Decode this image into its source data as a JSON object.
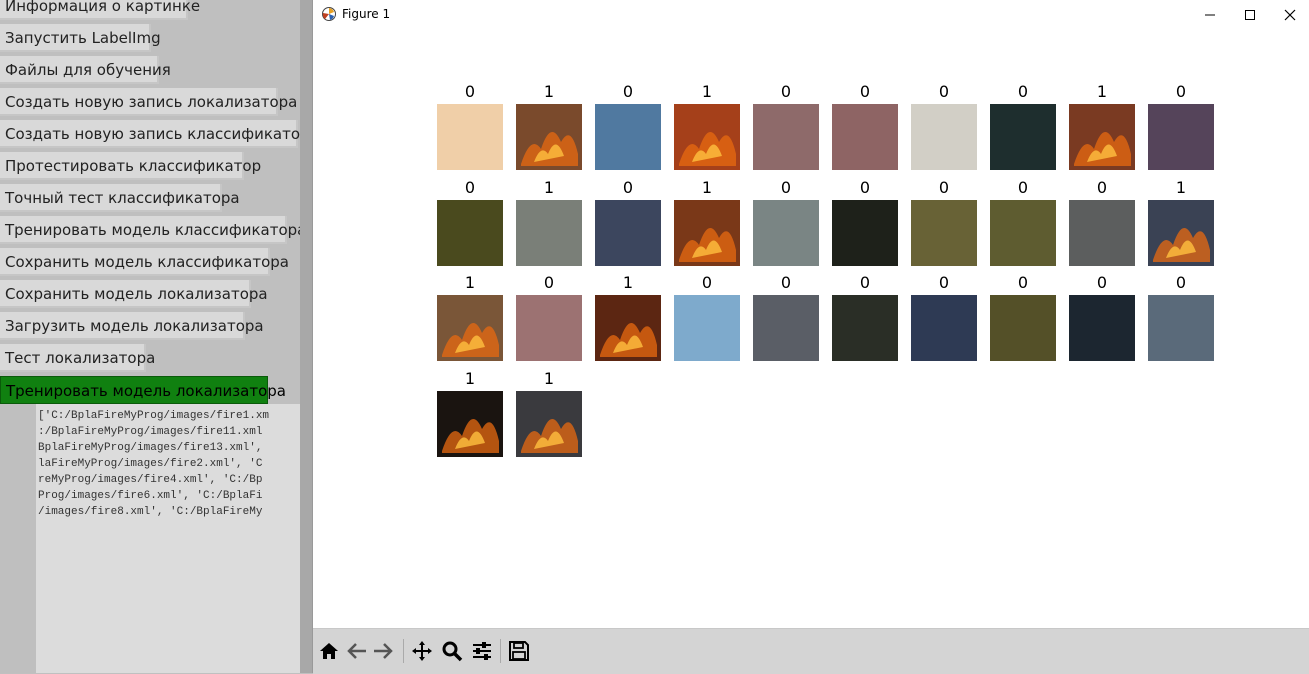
{
  "left_panel": {
    "buttons": [
      {
        "label": "Информация о картинке",
        "w": 188
      },
      {
        "label": "Запустить LabelImg",
        "w": 151
      },
      {
        "label": "Файлы для обучения",
        "w": 159
      },
      {
        "label": "Создать новую запись локализатора",
        "w": 278
      },
      {
        "label": "Создать новую запись классификатора",
        "w": 298
      },
      {
        "label": "Протестировать классификатор",
        "w": 244
      },
      {
        "label": "Точный тест классификатора",
        "w": 222
      },
      {
        "label": "Тренировать модель классификатора",
        "w": 287
      },
      {
        "label": "Сохранить модель классификатора",
        "w": 270
      },
      {
        "label": "Сохранить модель локализатора",
        "w": 251
      },
      {
        "label": "Загрузить модель локализатора",
        "w": 245
      },
      {
        "label": "Тест локализатора",
        "w": 146
      },
      {
        "label": "Тренировать модель локализатора",
        "w": 268,
        "active": true
      }
    ],
    "log_text": "['C:/BplaFireMyProg/images/fire1.xm\n:/BplaFireMyProg/images/fire11.xml\nBplaFireMyProg/images/fire13.xml',\nlaFireMyProg/images/fire2.xml', 'C\nreMyProg/images/fire4.xml', 'C:/Bp\nProg/images/fire6.xml', 'C:/BplaFi\n/images/fire8.xml', 'C:/BplaFireMy"
  },
  "figure": {
    "title": "Figure 1",
    "window_controls": {
      "minimize": "—",
      "maximize": "☐",
      "close": "✕"
    },
    "toolbar": [
      {
        "name": "home-icon"
      },
      {
        "name": "back-icon"
      },
      {
        "name": "forward-icon"
      },
      {
        "name": "pan-icon"
      },
      {
        "name": "zoom-icon"
      },
      {
        "name": "configure-subplots-icon"
      },
      {
        "name": "save-icon"
      }
    ]
  },
  "chart_data": {
    "type": "image-grid",
    "columns": 10,
    "cells": [
      {
        "label": "0",
        "color": "#f0cfa8",
        "fire": false
      },
      {
        "label": "1",
        "color": "#7a4a2c",
        "fire": true
      },
      {
        "label": "0",
        "color": "#5079a0",
        "fire": false
      },
      {
        "label": "1",
        "color": "#a5401a",
        "fire": true
      },
      {
        "label": "0",
        "color": "#8e6a6a",
        "fire": false
      },
      {
        "label": "0",
        "color": "#8e6464",
        "fire": false
      },
      {
        "label": "0",
        "color": "#d2cfc6",
        "fire": false
      },
      {
        "label": "0",
        "color": "#1e2e2e",
        "fire": false
      },
      {
        "label": "1",
        "color": "#7a3a22",
        "fire": true
      },
      {
        "label": "0",
        "color": "#55445a",
        "fire": false
      },
      {
        "label": "0",
        "color": "#4a4a1e",
        "fire": false
      },
      {
        "label": "1",
        "color": "#7a7f78",
        "fire": false
      },
      {
        "label": "0",
        "color": "#3c465e",
        "fire": false
      },
      {
        "label": "1",
        "color": "#7a3818",
        "fire": true
      },
      {
        "label": "0",
        "color": "#7a8584",
        "fire": false
      },
      {
        "label": "0",
        "color": "#1e211a",
        "fire": false
      },
      {
        "label": "0",
        "color": "#686236",
        "fire": false
      },
      {
        "label": "0",
        "color": "#5e5c30",
        "fire": false
      },
      {
        "label": "0",
        "color": "#5c5e5e",
        "fire": false
      },
      {
        "label": "1",
        "color": "#3a4254",
        "fire": true
      },
      {
        "label": "1",
        "color": "#7a5638",
        "fire": true
      },
      {
        "label": "0",
        "color": "#9c7272",
        "fire": false
      },
      {
        "label": "1",
        "color": "#5c2612",
        "fire": true
      },
      {
        "label": "0",
        "color": "#7eaacc",
        "fire": false
      },
      {
        "label": "0",
        "color": "#5a5e66",
        "fire": false
      },
      {
        "label": "0",
        "color": "#2a2e26",
        "fire": false
      },
      {
        "label": "0",
        "color": "#2e3a54",
        "fire": false
      },
      {
        "label": "0",
        "color": "#545028",
        "fire": false
      },
      {
        "label": "0",
        "color": "#1c2630",
        "fire": false
      },
      {
        "label": "0",
        "color": "#5a6a7a",
        "fire": false
      },
      {
        "label": "1",
        "color": "#1a1410",
        "fire": true
      },
      {
        "label": "1",
        "color": "#3a3a3e",
        "fire": true
      }
    ]
  }
}
